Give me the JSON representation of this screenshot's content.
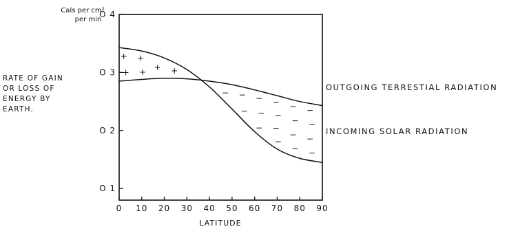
{
  "chart_data": {
    "type": "line",
    "x": [
      0,
      10,
      20,
      30,
      40,
      50,
      60,
      70,
      80,
      90
    ],
    "series": [
      {
        "name": "INCOMING SOLAR RADIATION",
        "values": [
          0.343,
          0.337,
          0.325,
          0.305,
          0.275,
          0.237,
          0.198,
          0.168,
          0.152,
          0.145
        ]
      },
      {
        "name": "OUTGOING TERRESTIAL RADIATION",
        "values": [
          0.285,
          0.288,
          0.29,
          0.289,
          0.285,
          0.279,
          0.27,
          0.26,
          0.25,
          0.243
        ]
      }
    ],
    "xlim": [
      0,
      90
    ],
    "ylim": [
      0.08,
      0.4
    ],
    "xticks": [
      "0",
      "10",
      "20",
      "30",
      "40",
      "50",
      "60",
      "70",
      "80",
      "90"
    ],
    "yticks": [
      {
        "value": 0.1,
        "label": "O 1"
      },
      {
        "value": 0.2,
        "label": "O 2"
      },
      {
        "value": 0.3,
        "label": "O 3"
      },
      {
        "value": 0.4,
        "label": "O 4"
      }
    ],
    "xlabel": "LATITUDE",
    "ylabel_lines": [
      "RATE OF GAIN",
      "OR LOSS OF",
      "ENERGY BY",
      "EARTH."
    ],
    "unit_lines": [
      "Cals per cm²",
      "per min"
    ],
    "gain_marker": "+",
    "loss_marker": "−",
    "grid": false
  }
}
